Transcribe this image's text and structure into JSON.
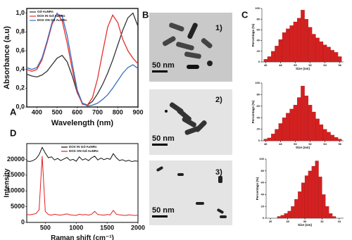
{
  "panel_labels": [
    "A",
    "B",
    "C",
    "D"
  ],
  "micrographs": [
    {
      "label": "1)",
      "scale": "50 nm"
    },
    {
      "label": "2)",
      "scale": "50 nm"
    },
    {
      "label": "3)",
      "scale": "50 nm"
    }
  ],
  "chart_data": [
    {
      "type": "line",
      "xlabel": "Wavelength (nm)",
      "ylabel": "Absorbance (a.u)",
      "x": [
        350,
        375,
        400,
        425,
        450,
        475,
        500,
        525,
        550,
        575,
        600,
        625,
        650,
        675,
        700,
        725,
        750,
        775,
        800,
        825,
        850,
        875,
        900
      ],
      "series": [
        {
          "name": "Gd-AuNRs",
          "color": "#333333",
          "values": [
            0.35,
            0.33,
            0.32,
            0.34,
            0.38,
            0.45,
            0.52,
            0.55,
            0.48,
            0.33,
            0.15,
            0.04,
            0.02,
            0.06,
            0.14,
            0.24,
            0.36,
            0.5,
            0.66,
            0.82,
            0.95,
            1.0,
            0.86
          ]
        },
        {
          "name": "DOX IN Gd-AuNRs",
          "color": "#e8302a",
          "values": [
            0.4,
            0.38,
            0.4,
            0.5,
            0.68,
            0.88,
            1.0,
            0.92,
            0.68,
            0.4,
            0.16,
            0.03,
            0.02,
            0.1,
            0.3,
            0.58,
            0.85,
            0.98,
            0.9,
            0.72,
            0.6,
            0.52,
            0.46
          ]
        },
        {
          "name": "DOX ON Gd-AuNRs",
          "color": "#3a6fc4",
          "values": [
            0.42,
            0.4,
            0.42,
            0.52,
            0.7,
            0.9,
            0.99,
            0.97,
            0.76,
            0.46,
            0.18,
            0.04,
            0.01,
            0.02,
            0.04,
            0.08,
            0.13,
            0.2,
            0.28,
            0.36,
            0.42,
            0.45,
            0.41
          ]
        }
      ],
      "xlim": [
        350,
        900
      ],
      "xticks": [
        400,
        500,
        600,
        700,
        800,
        900
      ],
      "ylim": [
        0,
        1.05
      ],
      "yticks": [
        {
          "value": 0,
          "label": "0,0"
        },
        {
          "value": 0.2,
          "label": "0,2"
        },
        {
          "value": 0.4,
          "label": "0,4"
        },
        {
          "value": 0.6,
          "label": "0,6"
        },
        {
          "value": 0.8,
          "label": "0,8"
        },
        {
          "value": 1.0,
          "label": "1,0"
        }
      ],
      "legend": "upper-left"
    },
    {
      "type": "histogram",
      "xlabel": "Size (nm)",
      "ylabel": "Percentage (%)",
      "color": "#d42020",
      "bins": [
        45.75,
        46.25,
        46.75,
        47.25,
        47.75,
        48.25,
        48.75,
        49.25,
        49.75,
        50.25,
        50.75,
        51.25,
        51.75,
        52.25,
        52.75,
        53.25,
        53.75,
        54.25,
        54.75,
        55.25,
        55.75,
        56.25
      ],
      "values": [
        5,
        10,
        20,
        30,
        42,
        55,
        62,
        68,
        75,
        82,
        97,
        80,
        65,
        52,
        45,
        38,
        32,
        28,
        22,
        18,
        10
      ],
      "xlim": [
        45.5,
        56.5
      ],
      "xticks": [
        46,
        48,
        50,
        52,
        54,
        56
      ],
      "ylim": [
        0,
        100
      ],
      "yticks": [
        0,
        20,
        40,
        60,
        80,
        100
      ]
    },
    {
      "type": "histogram",
      "xlabel": "Size (nm)",
      "ylabel": "Percentage (%)",
      "color": "#d42020",
      "bins": [
        45.75,
        46.25,
        46.75,
        47.25,
        47.75,
        48.25,
        48.75,
        49.25,
        49.75,
        50.25,
        50.75,
        51.25,
        51.75,
        52.25,
        52.75,
        53.25,
        53.75,
        54.25,
        54.75,
        55.25,
        55.75,
        56.25
      ],
      "values": [
        3,
        5,
        12,
        20,
        30,
        40,
        48,
        55,
        62,
        75,
        95,
        78,
        62,
        50,
        38,
        28,
        20,
        15,
        10,
        6,
        3
      ],
      "xlim": [
        45.5,
        56.5
      ],
      "xticks": [
        46,
        48,
        50,
        52,
        54,
        56
      ],
      "ylim": [
        0,
        100
      ],
      "yticks": [
        0,
        20,
        40,
        60,
        80,
        100
      ]
    },
    {
      "type": "histogram",
      "xlabel": "Size (nm)",
      "ylabel": "Percentage (%)",
      "color": "#d42020",
      "bins": [
        26.8,
        27.2,
        27.6,
        28.0,
        28.4,
        28.8,
        29.2,
        29.6,
        30.0,
        30.4,
        30.8,
        31.2,
        31.6,
        32.0,
        32.4,
        32.8,
        33.2,
        33.6
      ],
      "values": [
        3,
        5,
        8,
        12,
        20,
        32,
        45,
        60,
        72,
        80,
        88,
        97,
        70,
        40,
        20,
        8,
        3
      ],
      "xlim": [
        25.5,
        34.5
      ],
      "xticks": [
        26,
        28,
        30,
        32,
        34
      ],
      "ylim": [
        0,
        100
      ],
      "yticks": [
        0,
        20,
        40,
        60,
        80,
        100
      ]
    },
    {
      "type": "line",
      "xlabel": "Raman shift (cm⁻¹)",
      "ylabel": "Intensity",
      "x": [
        200,
        250,
        300,
        350,
        400,
        450,
        500,
        550,
        600,
        650,
        700,
        750,
        800,
        850,
        900,
        950,
        1000,
        1050,
        1100,
        1150,
        1200,
        1250,
        1300,
        1350,
        1400,
        1450,
        1500,
        1550,
        1600,
        1650,
        1700,
        1750,
        1800,
        1850,
        1900,
        1950,
        2000
      ],
      "series": [
        {
          "name": "DOX IN Gd-AuNRs",
          "color": "#111111",
          "values": [
            19500,
            19300,
            19600,
            20200,
            21500,
            23800,
            22000,
            20500,
            20800,
            19800,
            20300,
            19600,
            20100,
            20600,
            19700,
            20000,
            19400,
            20800,
            19800,
            20200,
            19600,
            20500,
            21000,
            19800,
            20400,
            19900,
            20300,
            20000,
            21800,
            20500,
            19600,
            19900,
            19400,
            19700,
            19300,
            19500,
            19400
          ]
        },
        {
          "name": "DOX ON Gd-AuNRs",
          "color": "#e02020",
          "values": [
            2500,
            2400,
            2600,
            2800,
            4000,
            21000,
            3500,
            2500,
            2300,
            2600,
            2400,
            2300,
            2500,
            2700,
            2400,
            2300,
            2200,
            2600,
            2400,
            2500,
            2300,
            2600,
            3500,
            2500,
            2400,
            2300,
            2500,
            2400,
            3800,
            2600,
            2400,
            2300,
            2200,
            2400,
            2300,
            2200,
            2300
          ]
        }
      ],
      "xlim": [
        200,
        2000
      ],
      "xticks": [
        500,
        1000,
        1500,
        2000
      ],
      "ylim": [
        0,
        25000
      ],
      "yticks": [
        0,
        5000,
        10000,
        15000,
        20000
      ],
      "legend": "upper-center"
    }
  ]
}
